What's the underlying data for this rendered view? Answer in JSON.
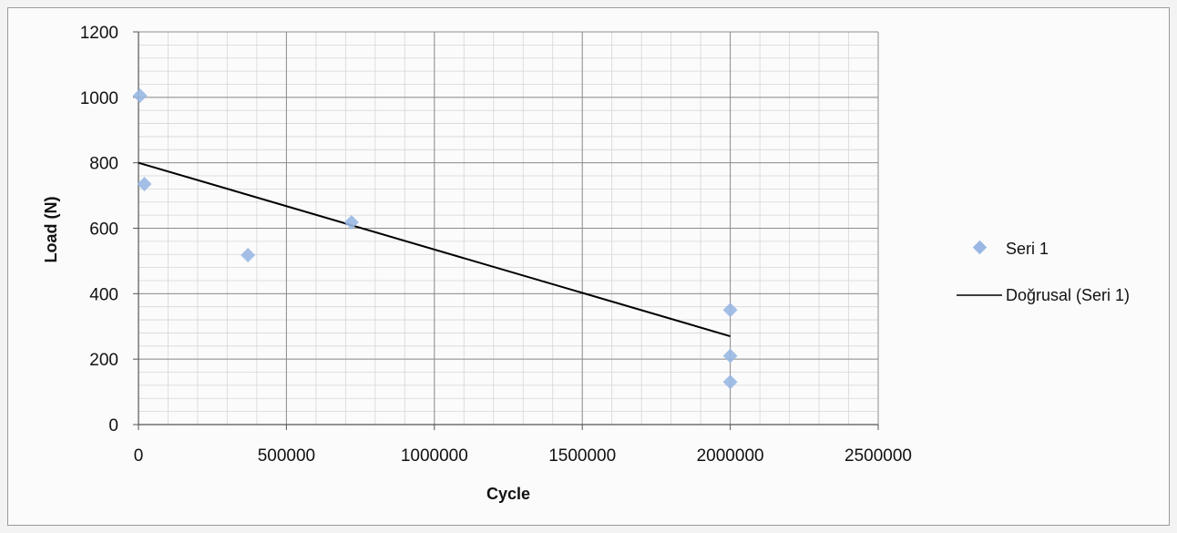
{
  "chart_data": {
    "type": "scatter",
    "title": "",
    "xlabel": "Cycle",
    "ylabel": "Load (N)",
    "xlim": [
      0,
      2500000
    ],
    "ylim": [
      0,
      1200
    ],
    "x_ticks": [
      "0",
      "500000",
      "1000000",
      "1500000",
      "2000000",
      "2500000"
    ],
    "y_ticks": [
      "0",
      "200",
      "400",
      "600",
      "800",
      "1000",
      "1200"
    ],
    "grid": true,
    "legend_position": "right",
    "series": [
      {
        "name": "Seri 1",
        "color": "#9ab8e3",
        "points": [
          {
            "x": 5000,
            "y": 1005
          },
          {
            "x": 20000,
            "y": 735
          },
          {
            "x": 370000,
            "y": 518
          },
          {
            "x": 720000,
            "y": 618
          },
          {
            "x": 2000000,
            "y": 350
          },
          {
            "x": 2000000,
            "y": 210
          },
          {
            "x": 2000000,
            "y": 130
          }
        ]
      }
    ],
    "trendline": {
      "name": "Doğrusal (Seri 1)",
      "color": "#000000",
      "x": [
        0,
        2000000
      ],
      "y": [
        800,
        270
      ]
    }
  }
}
